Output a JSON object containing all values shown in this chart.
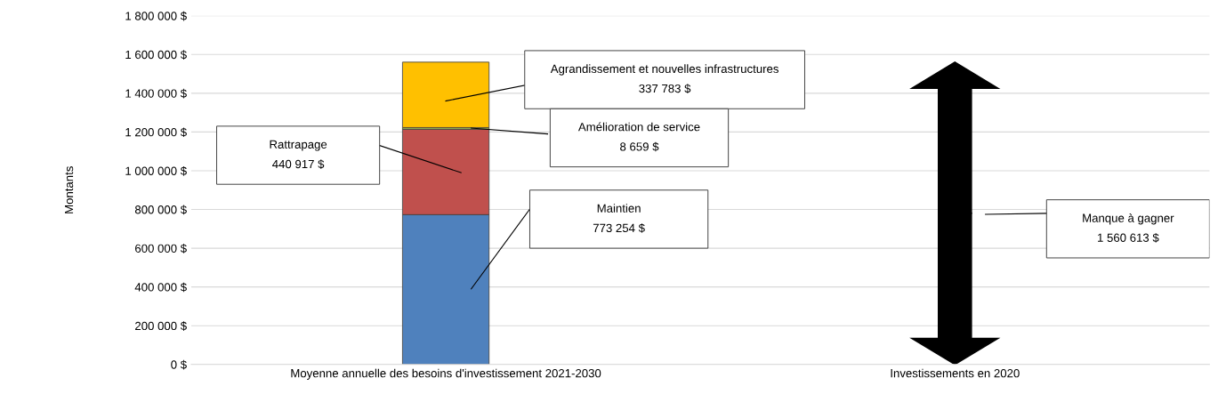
{
  "chart_data": {
    "type": "bar",
    "stacked": true,
    "ylabel": "Montants",
    "categories": [
      "Moyenne annuelle des besoins d'investissement 2021-2030",
      "Investissements en 2020"
    ],
    "series": [
      {
        "color": "#4f81bd",
        "values": [
          773254,
          null
        ]
      },
      {
        "color": "#c0504d",
        "values": [
          440917,
          null
        ]
      },
      {
        "color": "#9bbb59",
        "values": [
          8659,
          null
        ]
      },
      {
        "color": "#ffc000",
        "values": [
          337783,
          null
        ]
      }
    ],
    "ylim": [
      0,
      1800000
    ],
    "yticks": [
      {
        "value": 0,
        "label": "0 $"
      },
      {
        "value": 200000,
        "label": "200 000 $"
      },
      {
        "value": 400000,
        "label": "400 000 $"
      },
      {
        "value": 600000,
        "label": "600 000 $"
      },
      {
        "value": 800000,
        "label": "800 000 $"
      },
      {
        "value": 1000000,
        "label": "1 000 000 $"
      },
      {
        "value": 1200000,
        "label": "1 200 000 $"
      },
      {
        "value": 1400000,
        "label": "1 400 000 $"
      },
      {
        "value": 1600000,
        "label": "1 600 000 $"
      },
      {
        "value": 1800000,
        "label": "1 800 000 $"
      }
    ],
    "grid": "y",
    "legend": false,
    "annotations": [
      "Agrandissement et nouvelles infrastructures",
      "337 783 $",
      "Amélioration de service",
      "8 659 $",
      "Rattrapage",
      "440 917 $",
      "Maintien",
      "773 254 $",
      "Manque à gagner",
      "1 560 613 $"
    ]
  }
}
